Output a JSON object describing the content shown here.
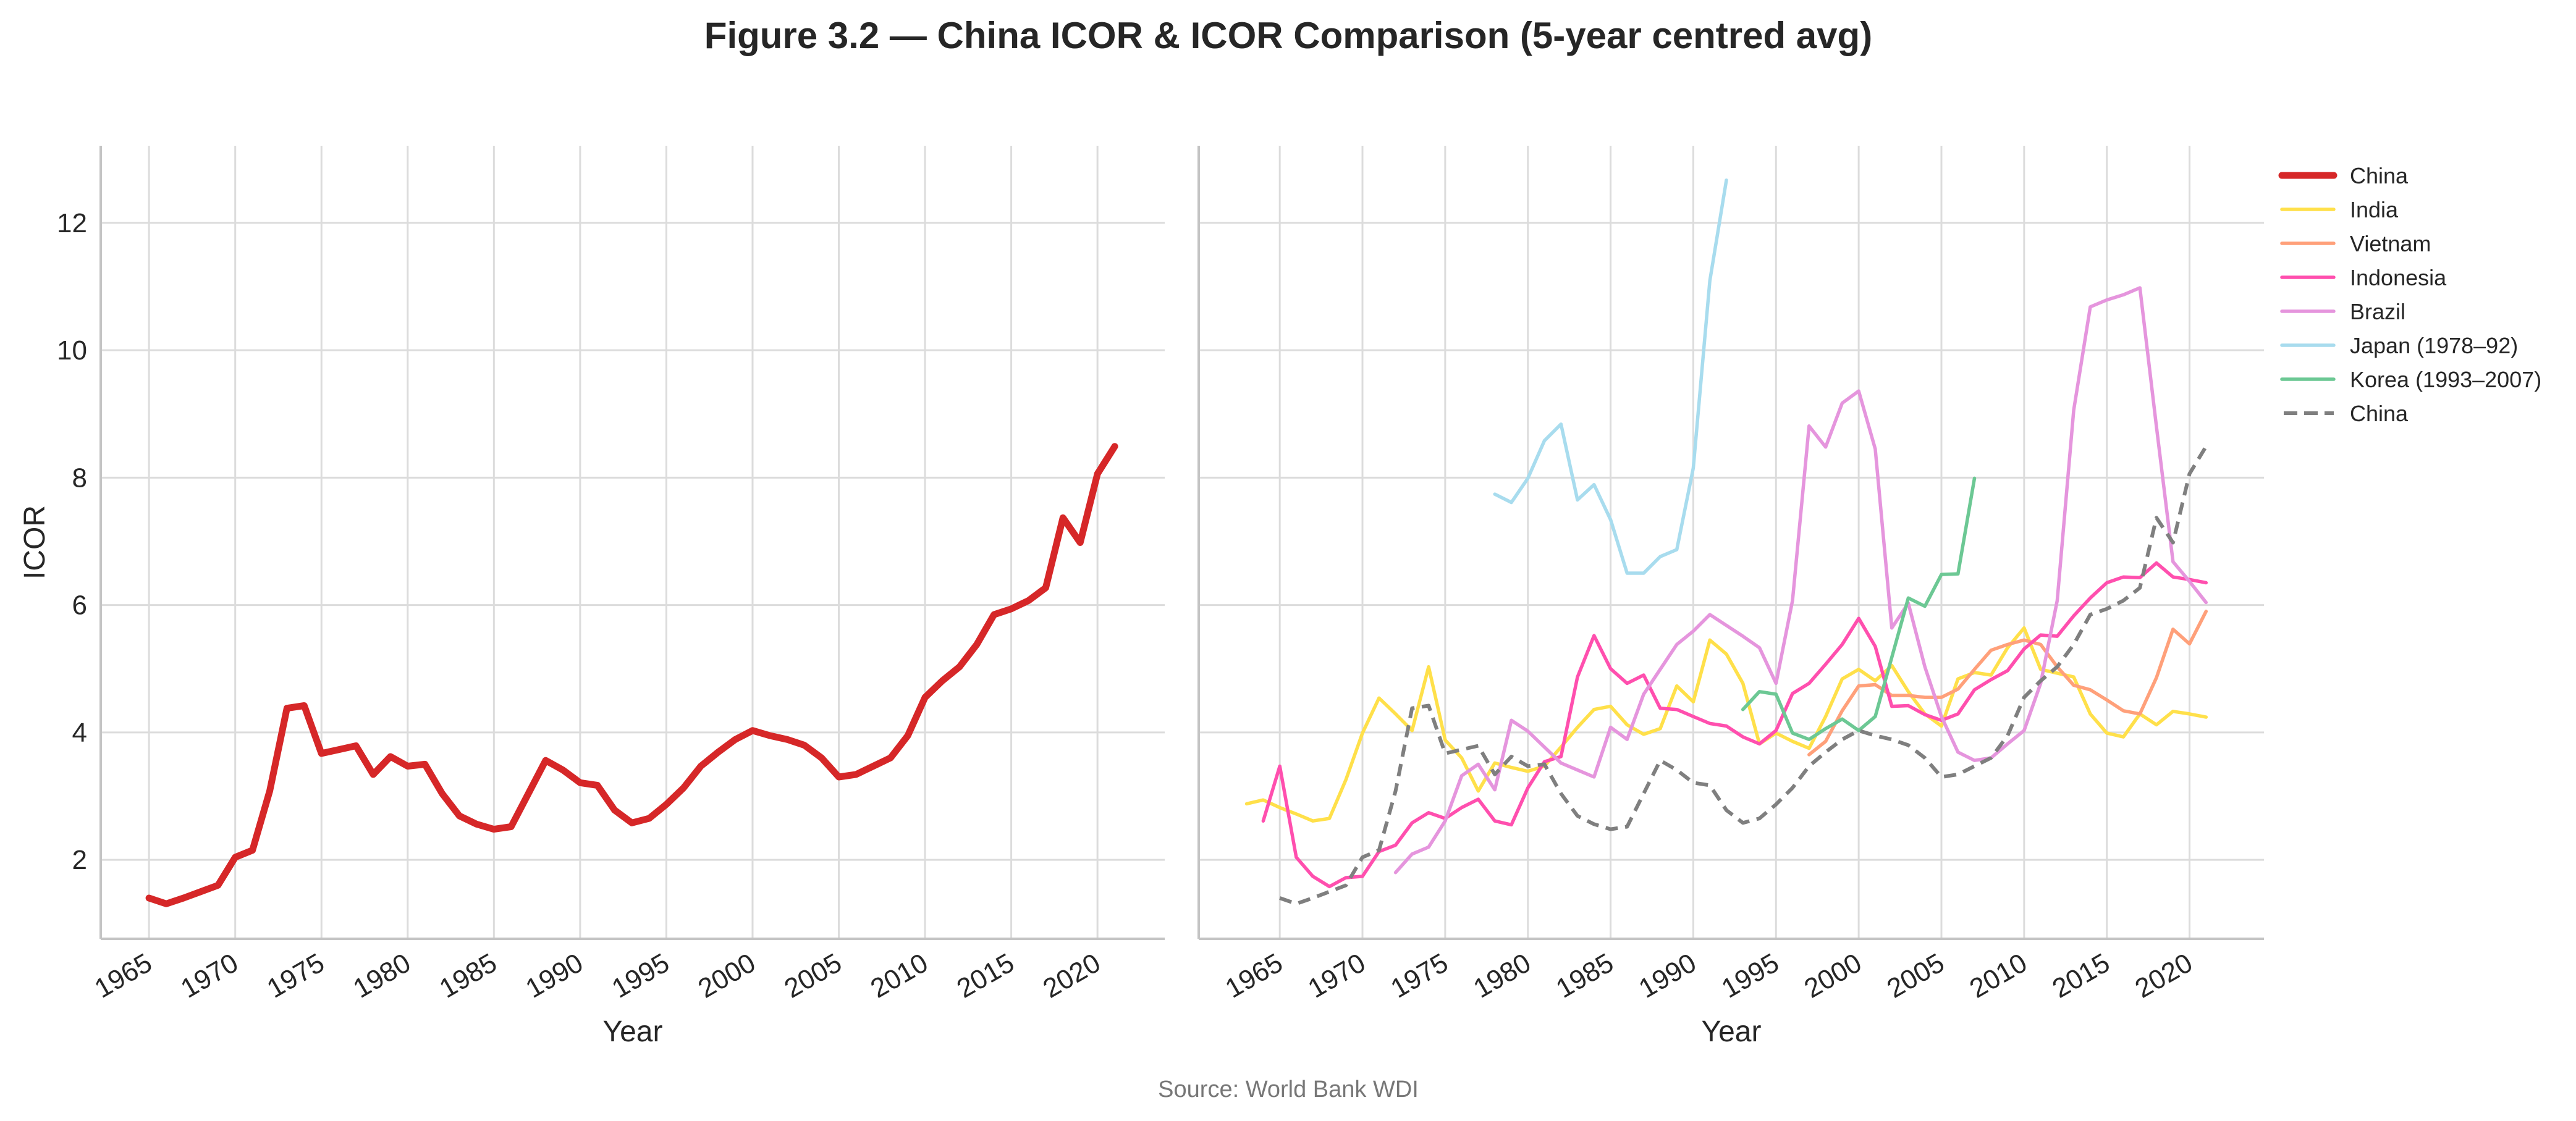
{
  "chart_data": [
    {
      "type": "line",
      "panel": "left",
      "xlabel": "Year",
      "ylabel": "ICOR",
      "xlim": [
        1962.2,
        2023.9
      ],
      "ylim": [
        0.76,
        13.21
      ],
      "xticks": [
        1965,
        1970,
        1975,
        1980,
        1985,
        1990,
        1995,
        2000,
        2005,
        2010,
        2015,
        2020
      ],
      "yticks": [
        2,
        4,
        6,
        8,
        10,
        12
      ],
      "grid": true,
      "series": [
        {
          "name": "China",
          "color": "#d62728",
          "style": "solid",
          "width": "thick",
          "x": [
            1965,
            1966,
            1967,
            1968,
            1969,
            1970,
            1971,
            1972,
            1973,
            1974,
            1975,
            1976,
            1977,
            1978,
            1979,
            1980,
            1981,
            1982,
            1983,
            1984,
            1985,
            1986,
            1987,
            1988,
            1989,
            1990,
            1991,
            1992,
            1993,
            1994,
            1995,
            1996,
            1997,
            1998,
            1999,
            2000,
            2001,
            2002,
            2003,
            2004,
            2005,
            2006,
            2007,
            2008,
            2009,
            2010,
            2011,
            2012,
            2013,
            2014,
            2015,
            2016,
            2017,
            2018,
            2019,
            2020,
            2021
          ],
          "values": [
            1.4,
            1.31,
            1.4,
            1.5,
            1.6,
            2.04,
            2.15,
            3.08,
            4.38,
            4.42,
            3.67,
            3.73,
            3.79,
            3.34,
            3.62,
            3.47,
            3.5,
            3.04,
            2.69,
            2.56,
            2.48,
            2.52,
            3.04,
            3.56,
            3.41,
            3.21,
            3.17,
            2.78,
            2.58,
            2.65,
            2.87,
            3.13,
            3.47,
            3.69,
            3.89,
            4.03,
            3.95,
            3.89,
            3.8,
            3.6,
            3.3,
            3.34,
            3.47,
            3.6,
            3.95,
            4.55,
            4.81,
            5.03,
            5.38,
            5.85,
            5.94,
            6.07,
            6.27,
            7.37,
            6.98,
            8.06,
            8.49
          ]
        }
      ]
    },
    {
      "type": "line",
      "panel": "right",
      "xlabel": "Year",
      "xlim": [
        1960.1,
        2024.5
      ],
      "ylim": [
        0.76,
        13.21
      ],
      "xticks": [
        1965,
        1970,
        1975,
        1980,
        1985,
        1990,
        1995,
        2000,
        2005,
        2010,
        2015,
        2020
      ],
      "yticks": [
        2,
        4,
        6,
        8,
        10,
        12
      ],
      "grid": true,
      "legend": "outside-right-top",
      "series": [
        {
          "name": "China",
          "color": "#d62728",
          "style": "solid",
          "width": "thick",
          "legend_only": true,
          "x": [],
          "values": []
        },
        {
          "name": "India",
          "color": "#ffe04a",
          "style": "solid",
          "width": "normal",
          "x": [
            1963,
            1964,
            1965,
            1966,
            1967,
            1968,
            1969,
            1970,
            1971,
            1972,
            1973,
            1974,
            1975,
            1976,
            1977,
            1978,
            1979,
            1980,
            1981,
            1982,
            1983,
            1984,
            1985,
            1986,
            1987,
            1988,
            1989,
            1990,
            1991,
            1992,
            1993,
            1994,
            1995,
            1996,
            1997,
            1998,
            1999,
            2000,
            2001,
            2002,
            2003,
            2004,
            2005,
            2006,
            2007,
            2008,
            2009,
            2010,
            2011,
            2012,
            2013,
            2014,
            2015,
            2016,
            2017,
            2018,
            2019,
            2020,
            2021
          ],
          "values": [
            2.88,
            2.94,
            2.82,
            2.72,
            2.61,
            2.65,
            3.26,
            3.99,
            4.54,
            4.29,
            4.03,
            5.03,
            3.88,
            3.6,
            3.08,
            3.52,
            3.45,
            3.39,
            3.47,
            3.77,
            4.08,
            4.36,
            4.41,
            4.12,
            3.97,
            4.06,
            4.73,
            4.48,
            5.45,
            5.23,
            4.77,
            3.82,
            3.99,
            3.86,
            3.75,
            4.25,
            4.84,
            4.99,
            4.81,
            5.05,
            4.64,
            4.29,
            4.1,
            4.84,
            4.94,
            4.9,
            5.33,
            5.64,
            4.99,
            4.93,
            4.87,
            4.29,
            3.99,
            3.93,
            4.29,
            4.12,
            4.33,
            4.29,
            4.24
          ]
        },
        {
          "name": "Vietnam",
          "color": "#ffa07a",
          "style": "solid",
          "width": "normal",
          "x": [
            1997,
            1998,
            1999,
            2000,
            2001,
            2002,
            2003,
            2004,
            2005,
            2006,
            2007,
            2008,
            2009,
            2010,
            2011,
            2012,
            2013,
            2014,
            2015,
            2016,
            2017,
            2018,
            2019,
            2020,
            2021
          ],
          "values": [
            3.65,
            3.86,
            4.34,
            4.73,
            4.75,
            4.58,
            4.58,
            4.55,
            4.55,
            4.68,
            4.99,
            5.29,
            5.38,
            5.45,
            5.38,
            5.03,
            4.74,
            4.67,
            4.51,
            4.34,
            4.29,
            4.86,
            5.62,
            5.39,
            5.9
          ]
        },
        {
          "name": "Indonesia",
          "color": "#ff4fae",
          "style": "solid",
          "width": "normal",
          "x": [
            1964,
            1965,
            1966,
            1967,
            1968,
            1969,
            1970,
            1971,
            1972,
            1973,
            1974,
            1975,
            1976,
            1977,
            1978,
            1979,
            1980,
            1981,
            1982,
            1983,
            1984,
            1985,
            1986,
            1987,
            1988,
            1989,
            1990,
            1991,
            1992,
            1993,
            1994,
            1995,
            1996,
            1997,
            1998,
            1999,
            2000,
            2001,
            2002,
            2003,
            2004,
            2005,
            2006,
            2007,
            2008,
            2009,
            2010,
            2011,
            2012,
            2013,
            2014,
            2015,
            2016,
            2017,
            2018,
            2019,
            2020,
            2021
          ],
          "values": [
            2.61,
            3.47,
            2.04,
            1.74,
            1.58,
            1.72,
            1.74,
            2.13,
            2.23,
            2.58,
            2.74,
            2.65,
            2.82,
            2.95,
            2.61,
            2.55,
            3.13,
            3.54,
            3.62,
            4.87,
            5.52,
            5.0,
            4.77,
            4.9,
            4.38,
            4.36,
            4.25,
            4.14,
            4.1,
            3.93,
            3.82,
            4.03,
            4.61,
            4.77,
            5.07,
            5.38,
            5.79,
            5.35,
            4.41,
            4.42,
            4.28,
            4.19,
            4.29,
            4.67,
            4.83,
            4.97,
            5.31,
            5.53,
            5.51,
            5.83,
            6.11,
            6.35,
            6.44,
            6.43,
            6.66,
            6.44,
            6.4,
            6.35
          ]
        },
        {
          "name": "Brazil",
          "color": "#e595dd",
          "style": "solid",
          "width": "normal",
          "x": [
            1972,
            1973,
            1974,
            1975,
            1976,
            1977,
            1978,
            1979,
            1980,
            1981,
            1982,
            1983,
            1984,
            1985,
            1986,
            1987,
            1988,
            1989,
            1990,
            1991,
            1992,
            1993,
            1994,
            1995,
            1996,
            1997,
            1998,
            1999,
            2000,
            2001,
            2002,
            2003,
            2004,
            2005,
            2006,
            2007,
            2008,
            2009,
            2010,
            2011,
            2012,
            2013,
            2014,
            2015,
            2016,
            2017,
            2018,
            2019,
            2020,
            2021
          ],
          "values": [
            1.8,
            2.09,
            2.2,
            2.61,
            3.32,
            3.5,
            3.1,
            4.19,
            4.02,
            3.77,
            3.52,
            3.41,
            3.3,
            4.08,
            3.89,
            4.6,
            4.99,
            5.38,
            5.59,
            5.85,
            5.68,
            5.51,
            5.33,
            4.77,
            6.07,
            8.81,
            8.48,
            9.17,
            9.36,
            8.45,
            5.64,
            6.03,
            5.03,
            4.25,
            3.69,
            3.56,
            3.6,
            3.82,
            4.03,
            4.77,
            6.07,
            9.06,
            10.68,
            10.79,
            10.87,
            10.98,
            8.8,
            6.68,
            6.37,
            6.04
          ]
        },
        {
          "name": "Japan (1978–92)",
          "color": "#a8dcee",
          "style": "solid",
          "width": "normal",
          "x": [
            1978,
            1979,
            1980,
            1981,
            1982,
            1983,
            1984,
            1985,
            1986,
            1987,
            1988,
            1989,
            1990,
            1991,
            1992
          ],
          "values": [
            7.74,
            7.61,
            7.99,
            8.58,
            8.84,
            7.65,
            7.89,
            7.34,
            6.5,
            6.5,
            6.76,
            6.87,
            8.15,
            11.09,
            12.67
          ]
        },
        {
          "name": "Korea (1993–2007)",
          "color": "#6cc894",
          "style": "solid",
          "width": "normal",
          "x": [
            1993,
            1994,
            1995,
            1996,
            1997,
            1998,
            1999,
            2000,
            2001,
            2002,
            2003,
            2004,
            2005,
            2006,
            2007
          ],
          "values": [
            4.36,
            4.64,
            4.6,
            3.99,
            3.89,
            4.06,
            4.21,
            4.03,
            4.25,
            5.18,
            6.11,
            5.98,
            6.48,
            6.49,
            7.99
          ]
        },
        {
          "name": "China",
          "color": "#7f7f7f",
          "style": "dashed",
          "width": "normal",
          "same_as": "left China",
          "x": [
            1965,
            1966,
            1967,
            1968,
            1969,
            1970,
            1971,
            1972,
            1973,
            1974,
            1975,
            1976,
            1977,
            1978,
            1979,
            1980,
            1981,
            1982,
            1983,
            1984,
            1985,
            1986,
            1987,
            1988,
            1989,
            1990,
            1991,
            1992,
            1993,
            1994,
            1995,
            1996,
            1997,
            1998,
            1999,
            2000,
            2001,
            2002,
            2003,
            2004,
            2005,
            2006,
            2007,
            2008,
            2009,
            2010,
            2011,
            2012,
            2013,
            2014,
            2015,
            2016,
            2017,
            2018,
            2019,
            2020,
            2021
          ],
          "values": [
            1.4,
            1.31,
            1.4,
            1.5,
            1.6,
            2.04,
            2.15,
            3.08,
            4.38,
            4.42,
            3.67,
            3.73,
            3.79,
            3.34,
            3.62,
            3.47,
            3.5,
            3.04,
            2.69,
            2.56,
            2.48,
            2.52,
            3.04,
            3.56,
            3.41,
            3.21,
            3.17,
            2.78,
            2.58,
            2.65,
            2.87,
            3.13,
            3.47,
            3.69,
            3.89,
            4.03,
            3.95,
            3.89,
            3.8,
            3.6,
            3.3,
            3.34,
            3.47,
            3.6,
            3.95,
            4.55,
            4.81,
            5.03,
            5.38,
            5.85,
            5.94,
            6.07,
            6.27,
            7.37,
            6.98,
            8.06,
            8.49
          ]
        }
      ]
    }
  ],
  "title": "Figure 3.2 — China ICOR & ICOR Comparison (5-year centred avg)",
  "source": "Source: World Bank WDI"
}
